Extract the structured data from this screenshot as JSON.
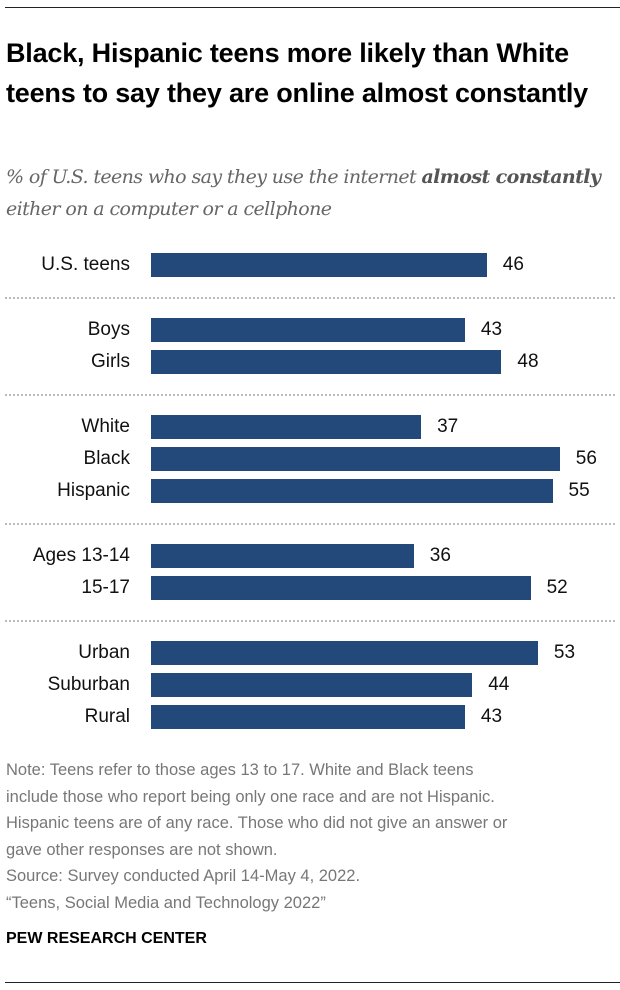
{
  "title": "Black, Hispanic teens more likely than White teens to say they are online almost constantly",
  "subtitle": {
    "part1": "% of U.S. teens who say they use the internet ",
    "bold": "almost constantly",
    "part2": " either on a computer or a cellphone"
  },
  "chart_data": {
    "type": "bar",
    "orientation": "horizontal",
    "bar_color": "#23497a",
    "xlim": [
      0,
      60
    ],
    "groups": [
      {
        "categories": [
          "U.S. teens"
        ],
        "values": [
          46
        ]
      },
      {
        "categories": [
          "Boys",
          "Girls"
        ],
        "values": [
          43,
          48
        ]
      },
      {
        "categories": [
          "White",
          "Black",
          "Hispanic"
        ],
        "values": [
          37,
          56,
          55
        ]
      },
      {
        "categories": [
          "Ages 13-14",
          "15-17"
        ],
        "values": [
          36,
          52
        ]
      },
      {
        "categories": [
          "Urban",
          "Suburban",
          "Rural"
        ],
        "values": [
          53,
          44,
          43
        ]
      }
    ]
  },
  "notes": [
    "Note: Teens refer to those ages 13 to 17. White and Black teens",
    "include those who report being only one race and are not Hispanic.",
    "Hispanic teens are of any race. Those who did not give an answer or",
    "gave other responses are not shown.",
    "Source: Survey conducted April 14-May 4, 2022.",
    "“Teens, Social Media and Technology 2022”"
  ],
  "brand": "PEW RESEARCH CENTER"
}
